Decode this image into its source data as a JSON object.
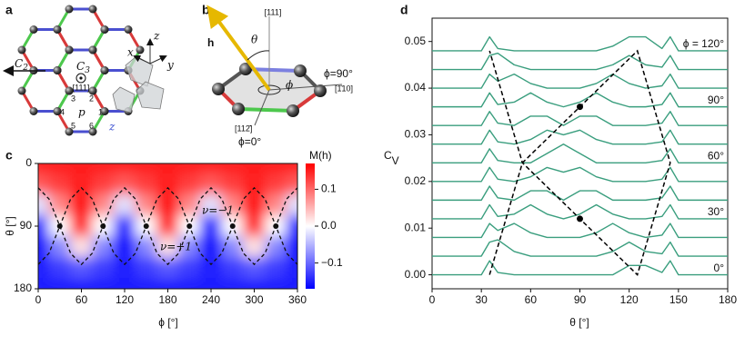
{
  "panel_a": {
    "label": "a",
    "c2": "C",
    "c2_sub": "2",
    "c3": "C",
    "c3_sub": "3",
    "c3_axis": "[111]",
    "axes": [
      "x",
      "y",
      "z"
    ],
    "sites": [
      "1",
      "2",
      "3",
      "4",
      "5",
      "6"
    ],
    "plaquette": "p",
    "bond": "z"
  },
  "panel_b": {
    "label": "b",
    "field": "h",
    "theta": "θ",
    "axis": "[111]",
    "phi": "ϕ",
    "phi90": "ϕ=90°",
    "dir90": "[1̄10]",
    "dir0": "[112̄]",
    "phi0": "ϕ=0°"
  },
  "chart_data": [
    {
      "type": "heatmap",
      "label": "c",
      "x": [
        0,
        30,
        60,
        90,
        120,
        150,
        180,
        210,
        240,
        270,
        300,
        330,
        360
      ],
      "y": [
        0,
        30,
        60,
        90,
        120,
        150,
        180
      ],
      "values": [
        [
          0.15,
          0.15,
          0.15,
          0.15,
          0.15,
          0.15,
          0.15,
          0.15,
          0.15,
          0.15,
          0.15,
          0.15,
          0.15
        ],
        [
          0.11,
          0.13,
          0.15,
          0.13,
          0.11,
          0.13,
          0.15,
          0.13,
          0.11,
          0.13,
          0.15,
          0.13,
          0.11
        ],
        [
          -0.02,
          0.08,
          0.17,
          0.08,
          -0.02,
          0.08,
          0.17,
          0.08,
          -0.02,
          0.08,
          0.17,
          0.08,
          -0.02
        ],
        [
          -0.15,
          0,
          0.15,
          0,
          -0.15,
          0,
          0.15,
          0,
          -0.15,
          0,
          0.15,
          0,
          -0.15
        ],
        [
          -0.17,
          -0.08,
          0.02,
          -0.08,
          -0.17,
          -0.08,
          0.02,
          -0.08,
          -0.17,
          -0.08,
          0.02,
          -0.08,
          -0.17
        ],
        [
          -0.15,
          -0.13,
          -0.11,
          -0.13,
          -0.15,
          -0.13,
          -0.11,
          -0.13,
          -0.15,
          -0.13,
          -0.11,
          -0.13,
          -0.15
        ],
        [
          -0.15,
          -0.15,
          -0.15,
          -0.15,
          -0.15,
          -0.15,
          -0.15,
          -0.15,
          -0.15,
          -0.15,
          -0.15,
          -0.15,
          -0.15
        ]
      ],
      "clim": [
        -0.17,
        0.17
      ],
      "xlim": [
        0,
        360
      ],
      "ylim": [
        180,
        0
      ],
      "xticks": [
        0,
        60,
        120,
        180,
        240,
        300,
        360
      ],
      "yticks": [
        0,
        90,
        180
      ],
      "xlabel": "ϕ [°]",
      "ylabel": "θ [°]",
      "colorbar": {
        "label": "M(h)",
        "ticks": [
          0.1,
          {
            "value": 0,
            "label": "0.0"
          },
          {
            "value": -0.1,
            "label": "−0.1"
          }
        ]
      },
      "contours": [
        {
          "x": [
            0,
            15,
            30,
            45,
            60,
            75,
            90,
            105,
            120,
            135,
            150,
            165,
            180,
            195,
            210,
            225,
            240,
            255,
            270,
            285,
            300,
            315,
            330,
            345,
            360
          ],
          "y": [
            35,
            51,
            90,
            129,
            145,
            129,
            90,
            51,
            35,
            51,
            90,
            129,
            145,
            129,
            90,
            51,
            35,
            51,
            90,
            129,
            145,
            129,
            90,
            51,
            35
          ]
        },
        {
          "x": [
            0,
            15,
            30,
            45,
            60,
            75,
            90,
            105,
            120,
            135,
            150,
            165,
            180,
            195,
            210,
            225,
            240,
            255,
            270,
            285,
            300,
            315,
            330,
            345,
            360
          ],
          "y": [
            145,
            129,
            90,
            51,
            35,
            51,
            90,
            129,
            145,
            129,
            90,
            51,
            35,
            51,
            90,
            129,
            145,
            129,
            90,
            51,
            35,
            51,
            90,
            129,
            145
          ]
        }
      ],
      "points": {
        "x": [
          30,
          90,
          150,
          210,
          270,
          330
        ],
        "y": [
          90,
          90,
          90,
          90,
          90,
          90
        ]
      },
      "annotations": [
        "ν=−1",
        "ν=+1"
      ]
    },
    {
      "type": "line",
      "label": "d",
      "x": [
        0,
        30,
        35,
        40,
        50,
        60,
        70,
        80,
        90,
        100,
        110,
        120,
        130,
        140,
        145,
        150,
        180
      ],
      "series": [
        {
          "name": "0°",
          "color": "#3a9e7e",
          "values": [
            0,
            0,
            0.003,
            0.0005,
            0,
            0,
            0,
            0,
            0,
            0,
            0,
            0.002,
            0.002,
            0.0005,
            0.003,
            0,
            0
          ]
        },
        {
          "color": "#3a9e7e",
          "values": [
            0.004,
            0.004,
            0.007,
            0.0075,
            0.005,
            0.004,
            0.004,
            0.004,
            0.004,
            0.004,
            0.005,
            0.007,
            0.005,
            0.0045,
            0.007,
            0.004,
            0.004
          ]
        },
        {
          "color": "#3a9e7e",
          "values": [
            0.008,
            0.008,
            0.011,
            0.0095,
            0.011,
            0.009,
            0.008,
            0.008,
            0.008,
            0.009,
            0.011,
            0.009,
            0.008,
            0.0085,
            0.011,
            0.008,
            0.008
          ]
        },
        {
          "name": "30°",
          "color": "#3a9e7e",
          "values": [
            0.012,
            0.012,
            0.015,
            0.0125,
            0.013,
            0.015,
            0.013,
            0.012,
            0.013,
            0.015,
            0.013,
            0.012,
            0.012,
            0.0125,
            0.015,
            0.012,
            0.012
          ]
        },
        {
          "color": "#3a9e7e",
          "values": [
            0.016,
            0.016,
            0.019,
            0.0165,
            0.016,
            0.018,
            0.018,
            0.016,
            0.018,
            0.018,
            0.016,
            0.016,
            0.016,
            0.0165,
            0.019,
            0.016,
            0.016
          ]
        },
        {
          "color": "#3a9e7e",
          "values": [
            0.02,
            0.02,
            0.023,
            0.0205,
            0.02,
            0.021,
            0.023,
            0.022,
            0.023,
            0.021,
            0.02,
            0.02,
            0.02,
            0.0205,
            0.023,
            0.02,
            0.02
          ]
        },
        {
          "name": "60°",
          "color": "#3a9e7e",
          "values": [
            0.024,
            0.024,
            0.027,
            0.0245,
            0.024,
            0.024,
            0.026,
            0.028,
            0.026,
            0.024,
            0.024,
            0.024,
            0.024,
            0.0245,
            0.027,
            0.024,
            0.024
          ]
        },
        {
          "color": "#3a9e7e",
          "values": [
            0.028,
            0.028,
            0.031,
            0.0285,
            0.028,
            0.029,
            0.031,
            0.03,
            0.031,
            0.029,
            0.028,
            0.028,
            0.028,
            0.0285,
            0.031,
            0.028,
            0.028
          ]
        },
        {
          "color": "#3a9e7e",
          "values": [
            0.032,
            0.032,
            0.035,
            0.0325,
            0.032,
            0.034,
            0.034,
            0.032,
            0.034,
            0.034,
            0.032,
            0.032,
            0.032,
            0.0325,
            0.035,
            0.032,
            0.032
          ]
        },
        {
          "name": "90°",
          "color": "#3a9e7e",
          "values": [
            0.036,
            0.036,
            0.039,
            0.0365,
            0.037,
            0.039,
            0.037,
            0.036,
            0.037,
            0.039,
            0.037,
            0.036,
            0.036,
            0.0365,
            0.039,
            0.036,
            0.036
          ]
        },
        {
          "color": "#3a9e7e",
          "values": [
            0.04,
            0.04,
            0.043,
            0.0415,
            0.043,
            0.041,
            0.04,
            0.04,
            0.04,
            0.041,
            0.043,
            0.041,
            0.04,
            0.0405,
            0.043,
            0.04,
            0.04
          ]
        },
        {
          "color": "#3a9e7e",
          "values": [
            0.044,
            0.044,
            0.047,
            0.0475,
            0.045,
            0.044,
            0.044,
            0.044,
            0.044,
            0.044,
            0.045,
            0.047,
            0.045,
            0.0445,
            0.047,
            0.044,
            0.044
          ]
        },
        {
          "name": "ϕ = 120°",
          "color": "#3a9e7e",
          "values": [
            0.048,
            0.048,
            0.051,
            0.0485,
            0.048,
            0.048,
            0.048,
            0.048,
            0.048,
            0.048,
            0.049,
            0.051,
            0.051,
            0.0485,
            0.051,
            0.048,
            0.048
          ]
        }
      ],
      "guide": {
        "color": "#000000",
        "x": [
          35,
          55,
          90,
          125,
          145,
          125,
          90,
          55,
          35
        ],
        "y": [
          0,
          0.024,
          0.036,
          0.048,
          0.024,
          0,
          0.012,
          0.024,
          0.048
        ]
      },
      "points": {
        "x": [
          90,
          90
        ],
        "y": [
          0.012,
          0.036
        ]
      },
      "xlim": [
        0,
        180
      ],
      "ylim": [
        -0.003,
        0.055
      ],
      "xticks": [
        0,
        30,
        60,
        90,
        120,
        150,
        180
      ],
      "yticks": [
        {
          "value": 0,
          "label": "0.00"
        },
        {
          "value": 0.01,
          "label": "0.01"
        },
        {
          "value": 0.02,
          "label": "0.02"
        },
        {
          "value": 0.03,
          "label": "0.03"
        },
        {
          "value": 0.04,
          "label": "0.04"
        },
        {
          "value": 0.05,
          "label": "0.05"
        }
      ],
      "xlabel": "θ [°]",
      "ylabel": "C",
      "ylabel_sub": "V"
    }
  ]
}
